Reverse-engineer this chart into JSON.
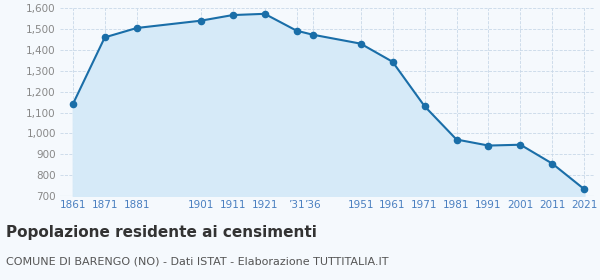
{
  "years": [
    1861,
    1871,
    1881,
    1901,
    1911,
    1921,
    1931,
    1936,
    1951,
    1961,
    1971,
    1981,
    1991,
    2001,
    2011,
    2021
  ],
  "population": [
    1140,
    1461,
    1506,
    1541,
    1568,
    1574,
    1493,
    1474,
    1431,
    1344,
    1131,
    971,
    942,
    946,
    855,
    732
  ],
  "x_ticks": [
    1861,
    1871,
    1881,
    1901,
    1911,
    1921,
    1931,
    1936,
    1951,
    1961,
    1971,
    1981,
    1991,
    2001,
    2011,
    2021
  ],
  "x_tick_labels": [
    "1861",
    "1871",
    "1881",
    "1901",
    "1911",
    "1921",
    "’31",
    "’36",
    "1951",
    "1961",
    "1971",
    "1981",
    "1991",
    "2001",
    "2011",
    "2021"
  ],
  "ylim": [
    700,
    1600
  ],
  "yticks": [
    700,
    800,
    900,
    1000,
    1100,
    1200,
    1300,
    1400,
    1500,
    1600
  ],
  "ytick_labels": [
    "700",
    "800",
    "900",
    "1,000",
    "1,100",
    "1,200",
    "1,300",
    "1,400",
    "1,500",
    "1,600"
  ],
  "line_color": "#1a6ea8",
  "fill_color": "#d6eaf8",
  "dot_color": "#1a6ea8",
  "bg_color": "#f5f9fd",
  "grid_color": "#c8d8e8",
  "x_label_color": "#4a7fc0",
  "y_label_color": "#888888",
  "title": "Popolazione residente ai censimenti",
  "subtitle": "COMUNE DI BARENGO (NO) - Dati ISTAT - Elaborazione TUTTITALIA.IT",
  "title_fontsize": 11,
  "subtitle_fontsize": 8
}
